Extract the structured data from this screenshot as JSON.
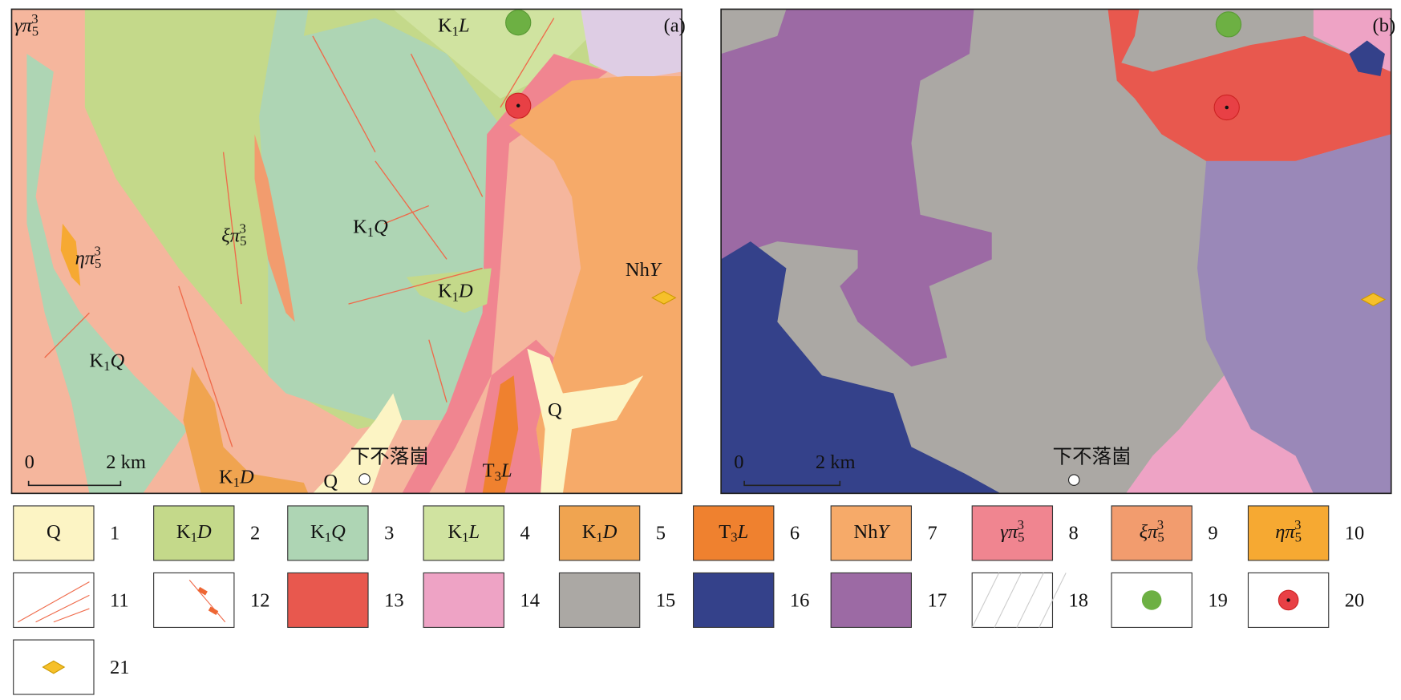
{
  "panels": [
    {
      "tag": "(a)",
      "labels": [
        [
          {
            "t": "γπ",
            "s": "italic"
          },
          {
            "t": "5",
            "s": "sub"
          },
          {
            "t": "3",
            "s": "sup"
          }
        ],
        [
          {
            "t": "K",
            "s": "plain"
          },
          {
            "t": "1",
            "s": "sub"
          },
          {
            "t": "L",
            "s": "italic"
          }
        ],
        [
          {
            "t": "K",
            "s": "plain"
          },
          {
            "t": "1",
            "s": "sub"
          },
          {
            "t": "Q",
            "s": "italic"
          }
        ],
        [
          {
            "t": "ξπ",
            "s": "italic"
          },
          {
            "t": "5",
            "s": "sub"
          },
          {
            "t": "3",
            "s": "sup"
          }
        ],
        [
          {
            "t": "ηπ",
            "s": "italic"
          },
          {
            "t": "5",
            "s": "sub"
          },
          {
            "t": "3",
            "s": "sup"
          }
        ],
        [
          {
            "t": "K",
            "s": "plain"
          },
          {
            "t": "1",
            "s": "sub"
          },
          {
            "t": "D",
            "s": "italic"
          }
        ],
        [
          {
            "t": "Nh",
            "s": "plain"
          },
          {
            "t": "Y",
            "s": "italic"
          }
        ],
        [
          {
            "t": "K",
            "s": "plain"
          },
          {
            "t": "1",
            "s": "sub"
          },
          {
            "t": "Q",
            "s": "italic"
          }
        ],
        [
          {
            "t": "Q",
            "s": "plain"
          }
        ],
        [
          {
            "t": "K",
            "s": "plain"
          },
          {
            "t": "1",
            "s": "sub"
          },
          {
            "t": "D",
            "s": "italic"
          }
        ],
        [
          {
            "t": "Q",
            "s": "plain"
          }
        ],
        [
          {
            "t": "T",
            "s": "plain"
          },
          {
            "t": "3",
            "s": "sub"
          },
          {
            "t": "L",
            "s": "italic"
          }
        ]
      ],
      "place": "下不落崮",
      "scale": [
        "0",
        "2 km"
      ]
    },
    {
      "tag": "(b)",
      "labels": [],
      "place": "下不落崮",
      "scale": [
        "0",
        "2 km"
      ]
    }
  ],
  "legend": [
    {
      "label": [
        {
          "t": "Q",
          "s": "plain"
        }
      ],
      "number": "1",
      "fill": "#fcf4c4"
    },
    {
      "label": [
        {
          "t": "K",
          "s": "plain"
        },
        {
          "t": "1",
          "s": "sub"
        },
        {
          "t": "D",
          "s": "italic"
        }
      ],
      "number": "2",
      "fill": "#c4d98a"
    },
    {
      "label": [
        {
          "t": "K",
          "s": "plain"
        },
        {
          "t": "1",
          "s": "sub"
        },
        {
          "t": "Q",
          "s": "italic"
        }
      ],
      "number": "3",
      "fill": "#aed5b4"
    },
    {
      "label": [
        {
          "t": "K",
          "s": "plain"
        },
        {
          "t": "1",
          "s": "sub"
        },
        {
          "t": "L",
          "s": "italic"
        }
      ],
      "number": "4",
      "fill": "#d0e3a0"
    },
    {
      "label": [
        {
          "t": "K",
          "s": "plain"
        },
        {
          "t": "1",
          "s": "sub"
        },
        {
          "t": "D",
          "s": "italic"
        }
      ],
      "number": "5",
      "fill": "#f0a450"
    },
    {
      "label": [
        {
          "t": "T",
          "s": "plain"
        },
        {
          "t": "3",
          "s": "sub"
        },
        {
          "t": "L",
          "s": "italic"
        }
      ],
      "number": "6",
      "fill": "#ef812f"
    },
    {
      "label": [
        {
          "t": "Nh",
          "s": "plain"
        },
        {
          "t": "Y",
          "s": "italic"
        }
      ],
      "number": "7",
      "fill": "#f6aa69"
    },
    {
      "label": [
        {
          "t": "γπ",
          "s": "italic"
        },
        {
          "t": "5",
          "s": "sub"
        },
        {
          "t": "3",
          "s": "sup"
        }
      ],
      "number": "8",
      "fill": "#f08590"
    },
    {
      "label": [
        {
          "t": "ξπ",
          "s": "italic"
        },
        {
          "t": "5",
          "s": "sub"
        },
        {
          "t": "3",
          "s": "sup"
        }
      ],
      "number": "9",
      "fill": "#f29c6e"
    },
    {
      "label": [
        {
          "t": "ηπ",
          "s": "italic"
        },
        {
          "t": "5",
          "s": "sub"
        },
        {
          "t": "3",
          "s": "sup"
        }
      ],
      "number": "10",
      "fill": "#f6a932"
    },
    {
      "number": "11"
    },
    {
      "number": "12"
    },
    {
      "number": "13",
      "fill": "#e8584e"
    },
    {
      "number": "14",
      "fill": "#eea3c5"
    },
    {
      "number": "15",
      "fill": "#aba8a4"
    },
    {
      "number": "16",
      "fill": "#34418a"
    },
    {
      "number": "17",
      "fill": "#9c6aa4"
    },
    {
      "number": "18"
    },
    {
      "number": "19"
    },
    {
      "number": "20"
    },
    {
      "number": "21"
    }
  ]
}
